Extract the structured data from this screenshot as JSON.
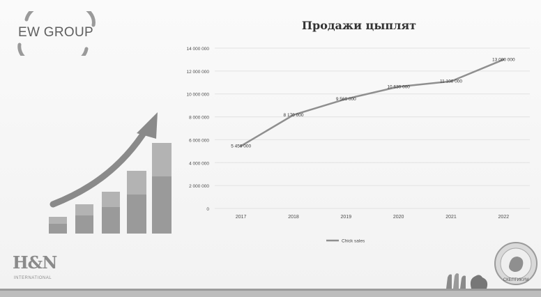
{
  "slide": {
    "logo_text": "EW GROUP",
    "title": "Продажи цыплят",
    "hn_logo": "H&N",
    "hn_subtext": "INTERNATIONAL",
    "seal_text": "СКЕПТИКУМ"
  },
  "colors": {
    "line": "#8f8f8f",
    "grid": "#e2e2e2",
    "text": "#4a4a4a",
    "bars_light": "#bdbdbd",
    "bars_dark": "#9a9a9a",
    "arrow": "#8a8a8a"
  },
  "icons": [
    "ew-group-logo",
    "growth-arrow-icon",
    "hn-logo",
    "chickens-icon",
    "seal-icon"
  ],
  "chart_data": {
    "type": "line",
    "title": "Продажи цыплят",
    "categories": [
      "2017",
      "2018",
      "2019",
      "2020",
      "2021",
      "2022"
    ],
    "series": [
      {
        "name": "Chick sales",
        "values": [
          5450000,
          8170000,
          9560000,
          10630000,
          11100000,
          13000000
        ]
      }
    ],
    "data_labels": [
      "5 450 000",
      "8 170 000",
      "9 560 000",
      "10 630 000",
      "11 100 000",
      "13 000 000"
    ],
    "y_ticks": [
      "0",
      "2 000 000",
      "4 000 000",
      "6 000 000",
      "8 000 000",
      "10 000 000",
      "12 000 000",
      "14 000 000"
    ],
    "ylim": [
      0,
      14000000
    ],
    "grid": true,
    "legend": "bottom"
  }
}
